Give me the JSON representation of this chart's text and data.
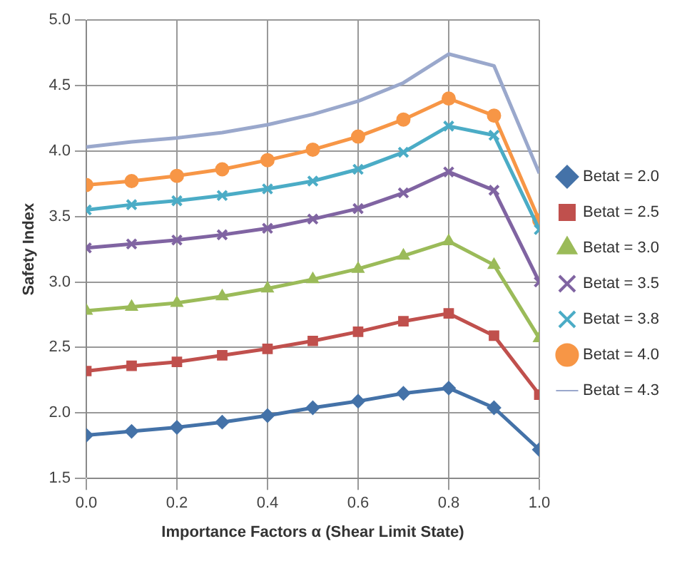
{
  "chart_data": {
    "type": "line",
    "xlabel": "Importance Factors α (Shear Limit State)",
    "ylabel": "Safety Index",
    "x": [
      0,
      0.1,
      0.2,
      0.3,
      0.4,
      0.5,
      0.6,
      0.7,
      0.8,
      0.9,
      1.0
    ],
    "xlim": [
      0,
      1
    ],
    "xticks": [
      {
        "value": 0,
        "label": "0.0"
      },
      {
        "value": 0.2,
        "label": "0.2"
      },
      {
        "value": 0.4,
        "label": "0.4"
      },
      {
        "value": 0.6,
        "label": "0.6"
      },
      {
        "value": 0.8,
        "label": "0.8"
      },
      {
        "value": 1,
        "label": "1.0"
      }
    ],
    "ylim": [
      1.5,
      5
    ],
    "yticks": [
      {
        "value": 1.5,
        "label": "1.5"
      },
      {
        "value": 2,
        "label": "2.0"
      },
      {
        "value": 2.5,
        "label": "2.5"
      },
      {
        "value": 3,
        "label": "3.0"
      },
      {
        "value": 3.5,
        "label": "3.5"
      },
      {
        "value": 4,
        "label": "4.0"
      },
      {
        "value": 4.5,
        "label": "4.5"
      },
      {
        "value": 5,
        "label": "5.0"
      }
    ],
    "grid": true,
    "legend": "right",
    "line_style": "solid",
    "series": [
      {
        "name": "Betat = 2.0",
        "color": "#4472a8",
        "marker": "diamond",
        "values": [
          1.83,
          1.86,
          1.89,
          1.93,
          1.98,
          2.04,
          2.09,
          2.15,
          2.19,
          2.04,
          1.72
        ]
      },
      {
        "name": "Betat = 2.5",
        "color": "#c0504d",
        "marker": "square",
        "values": [
          2.32,
          2.36,
          2.39,
          2.44,
          2.49,
          2.55,
          2.62,
          2.7,
          2.76,
          2.59,
          2.14
        ]
      },
      {
        "name": "Betat = 3.0",
        "color": "#9bbb59",
        "marker": "triangle",
        "values": [
          2.78,
          2.81,
          2.84,
          2.89,
          2.95,
          3.02,
          3.1,
          3.2,
          3.31,
          3.13,
          2.57
        ]
      },
      {
        "name": "Betat = 3.5",
        "color": "#8064a2",
        "marker": "cross",
        "values": [
          3.26,
          3.29,
          3.32,
          3.36,
          3.41,
          3.48,
          3.56,
          3.68,
          3.84,
          3.7,
          3.0
        ]
      },
      {
        "name": "Betat = 3.8",
        "color": "#4bacc6",
        "marker": "cross",
        "values": [
          3.55,
          3.59,
          3.62,
          3.66,
          3.71,
          3.77,
          3.86,
          3.99,
          4.19,
          4.12,
          3.4
        ]
      },
      {
        "name": "Betat = 4.0",
        "color": "#f79646",
        "marker": "circle",
        "values": [
          3.74,
          3.77,
          3.81,
          3.86,
          3.93,
          4.01,
          4.11,
          4.24,
          4.4,
          4.27,
          3.47
        ]
      },
      {
        "name": "Betat = 4.3",
        "color": "#9aa8cc",
        "marker": "none",
        "values": [
          4.03,
          4.07,
          4.1,
          4.14,
          4.2,
          4.28,
          4.38,
          4.52,
          4.74,
          4.65,
          3.83
        ]
      }
    ]
  }
}
